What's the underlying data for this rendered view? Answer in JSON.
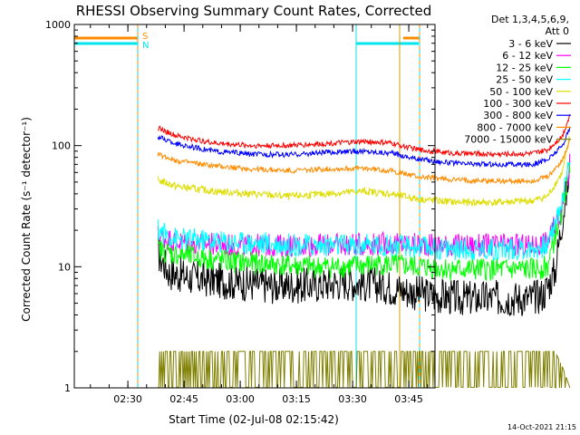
{
  "chart_data": {
    "type": "line",
    "title": "RHESSI Observing Summary Count Rates, Corrected",
    "xlabel": "Start Time (02-Jul-08 02:15:42)",
    "ylabel": "Corrected Count Rate (s⁻¹ detector⁻¹)",
    "y_scale": "log",
    "ylim": [
      1,
      1000
    ],
    "xlim": [
      "02:15:42",
      "03:52:00"
    ],
    "x_ticks": [
      "02:30",
      "02:45",
      "03:00",
      "03:15",
      "03:30",
      "03:45"
    ],
    "y_ticks": [
      "1",
      "10",
      "100",
      "1000"
    ],
    "legend_header": [
      "Det 1,3,4,5,6,9,",
      "Att 0"
    ],
    "legend_position": "right",
    "footer": "14-Oct-2021 21:15",
    "flags": [
      {
        "label": "S",
        "color": "#ff8c00"
      },
      {
        "label": "N",
        "color": "#00e5ee"
      }
    ],
    "series": [
      {
        "name": "3 - 6 keV",
        "color": "#000000",
        "data": [
          [
            0,
            13
          ],
          [
            3,
            9
          ],
          [
            10,
            8
          ],
          [
            20,
            7.5
          ],
          [
            30,
            7
          ],
          [
            40,
            7
          ],
          [
            50,
            7.5
          ],
          [
            60,
            7
          ],
          [
            70,
            6
          ],
          [
            80,
            5.5
          ],
          [
            90,
            5.5
          ],
          [
            100,
            5.5
          ],
          [
            103,
            6
          ],
          [
            106,
            9
          ],
          [
            108,
            25
          ],
          [
            110,
            60
          ]
        ]
      },
      {
        "name": "6 - 12 keV",
        "color": "#ff00ff",
        "data": [
          [
            0,
            18
          ],
          [
            5,
            16
          ],
          [
            20,
            15
          ],
          [
            40,
            15
          ],
          [
            60,
            15.5
          ],
          [
            80,
            15
          ],
          [
            100,
            15
          ],
          [
            104,
            16
          ],
          [
            108,
            30
          ],
          [
            110,
            70
          ]
        ]
      },
      {
        "name": "12 - 25 keV",
        "color": "#00ff00",
        "data": [
          [
            0,
            14
          ],
          [
            3,
            13
          ],
          [
            10,
            12
          ],
          [
            20,
            11
          ],
          [
            30,
            10.5
          ],
          [
            40,
            10
          ],
          [
            50,
            10
          ],
          [
            60,
            10.5
          ],
          [
            70,
            10
          ],
          [
            80,
            9.5
          ],
          [
            100,
            9.5
          ],
          [
            104,
            10
          ],
          [
            108,
            30
          ],
          [
            110,
            70
          ]
        ]
      },
      {
        "name": "25 - 50 keV",
        "color": "#00ffff",
        "data": [
          [
            0,
            20
          ],
          [
            5,
            17
          ],
          [
            20,
            16
          ],
          [
            40,
            15
          ],
          [
            60,
            15
          ],
          [
            80,
            14
          ],
          [
            100,
            14
          ],
          [
            104,
            15
          ],
          [
            108,
            35
          ],
          [
            110,
            80
          ]
        ]
      },
      {
        "name": "50 - 100 keV",
        "color": "#dddd00",
        "data": [
          [
            0,
            52
          ],
          [
            5,
            46
          ],
          [
            15,
            42
          ],
          [
            25,
            40
          ],
          [
            35,
            38
          ],
          [
            45,
            40
          ],
          [
            55,
            42
          ],
          [
            62,
            40
          ],
          [
            70,
            36
          ],
          [
            80,
            34
          ],
          [
            90,
            34
          ],
          [
            100,
            35
          ],
          [
            104,
            38
          ],
          [
            108,
            60
          ],
          [
            110,
            120
          ]
        ]
      },
      {
        "name": "100 - 300 keV",
        "color": "#ff0000",
        "data": [
          [
            0,
            140
          ],
          [
            5,
            120
          ],
          [
            15,
            105
          ],
          [
            25,
            100
          ],
          [
            35,
            100
          ],
          [
            45,
            104
          ],
          [
            55,
            108
          ],
          [
            62,
            105
          ],
          [
            70,
            92
          ],
          [
            80,
            86
          ],
          [
            90,
            85
          ],
          [
            100,
            86
          ],
          [
            104,
            92
          ],
          [
            108,
            120
          ],
          [
            110,
            180
          ]
        ]
      },
      {
        "name": "300 - 800 keV",
        "color": "#0000ff",
        "data": [
          [
            0,
            118
          ],
          [
            5,
            103
          ],
          [
            15,
            90
          ],
          [
            25,
            85
          ],
          [
            35,
            84
          ],
          [
            45,
            88
          ],
          [
            55,
            90
          ],
          [
            62,
            87
          ],
          [
            70,
            77
          ],
          [
            80,
            71
          ],
          [
            90,
            70
          ],
          [
            100,
            70
          ],
          [
            104,
            76
          ],
          [
            108,
            100
          ],
          [
            110,
            140
          ]
        ]
      },
      {
        "name": "800 - 7000 keV",
        "color": "#ff8c00",
        "data": [
          [
            0,
            85
          ],
          [
            5,
            75
          ],
          [
            15,
            68
          ],
          [
            25,
            64
          ],
          [
            35,
            62
          ],
          [
            45,
            64
          ],
          [
            55,
            65
          ],
          [
            62,
            62
          ],
          [
            70,
            55
          ],
          [
            80,
            52
          ],
          [
            90,
            51
          ],
          [
            100,
            51
          ],
          [
            104,
            55
          ],
          [
            108,
            75
          ],
          [
            110,
            110
          ]
        ]
      },
      {
        "name": "7000 - 15000 keV",
        "color": "#808000",
        "data": [
          [
            0,
            2
          ],
          [
            25,
            2
          ],
          [
            50,
            2
          ],
          [
            75,
            2
          ],
          [
            100,
            2
          ],
          [
            106,
            2
          ],
          [
            108,
            1.5
          ],
          [
            110,
            1
          ]
        ]
      }
    ]
  }
}
